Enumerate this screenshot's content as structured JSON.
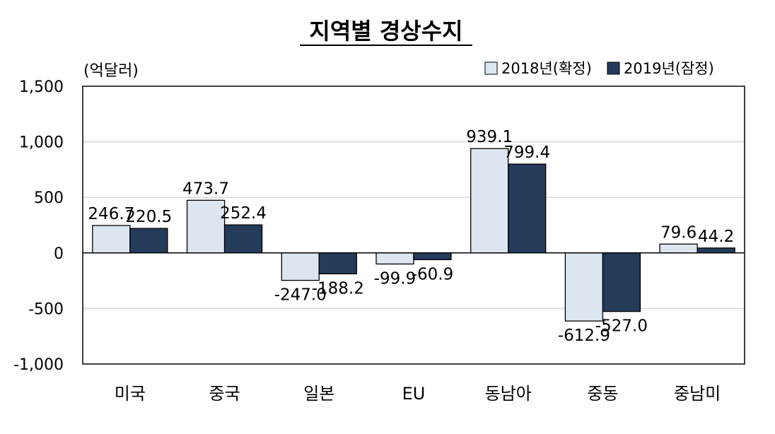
{
  "chart_data": {
    "type": "bar",
    "title": "지역별 경상수지",
    "unit_label": "(억달러)",
    "categories": [
      "미국",
      "중국",
      "일본",
      "EU",
      "동남아",
      "중동",
      "중남미"
    ],
    "series": [
      {
        "name": "2018년(확정)",
        "values": [
          246.7,
          473.7,
          -247.0,
          -99.9,
          939.1,
          -612.9,
          79.6
        ],
        "labels": [
          "246.7",
          "473.7",
          "-247.0",
          "-99.9",
          "939.1",
          "-612.9",
          "79.6"
        ],
        "color": "#dce6f1"
      },
      {
        "name": "2019년(잠정)",
        "values": [
          220.5,
          252.4,
          -188.2,
          -60.9,
          799.4,
          -527.0,
          44.2
        ],
        "labels": [
          "220.5",
          "252.4",
          "-188.2",
          "-60.9",
          "799.4",
          "-527.0",
          "44.2"
        ],
        "color": "#243b5a"
      }
    ],
    "yticks": [
      1500,
      1000,
      500,
      0,
      -500,
      -1000
    ],
    "ytick_labels": [
      "1,500",
      "1,000",
      "500",
      "0",
      "-500",
      "-1,000"
    ],
    "ylim": [
      -1000,
      1500
    ],
    "grid": true,
    "legend_position": "top-right"
  }
}
